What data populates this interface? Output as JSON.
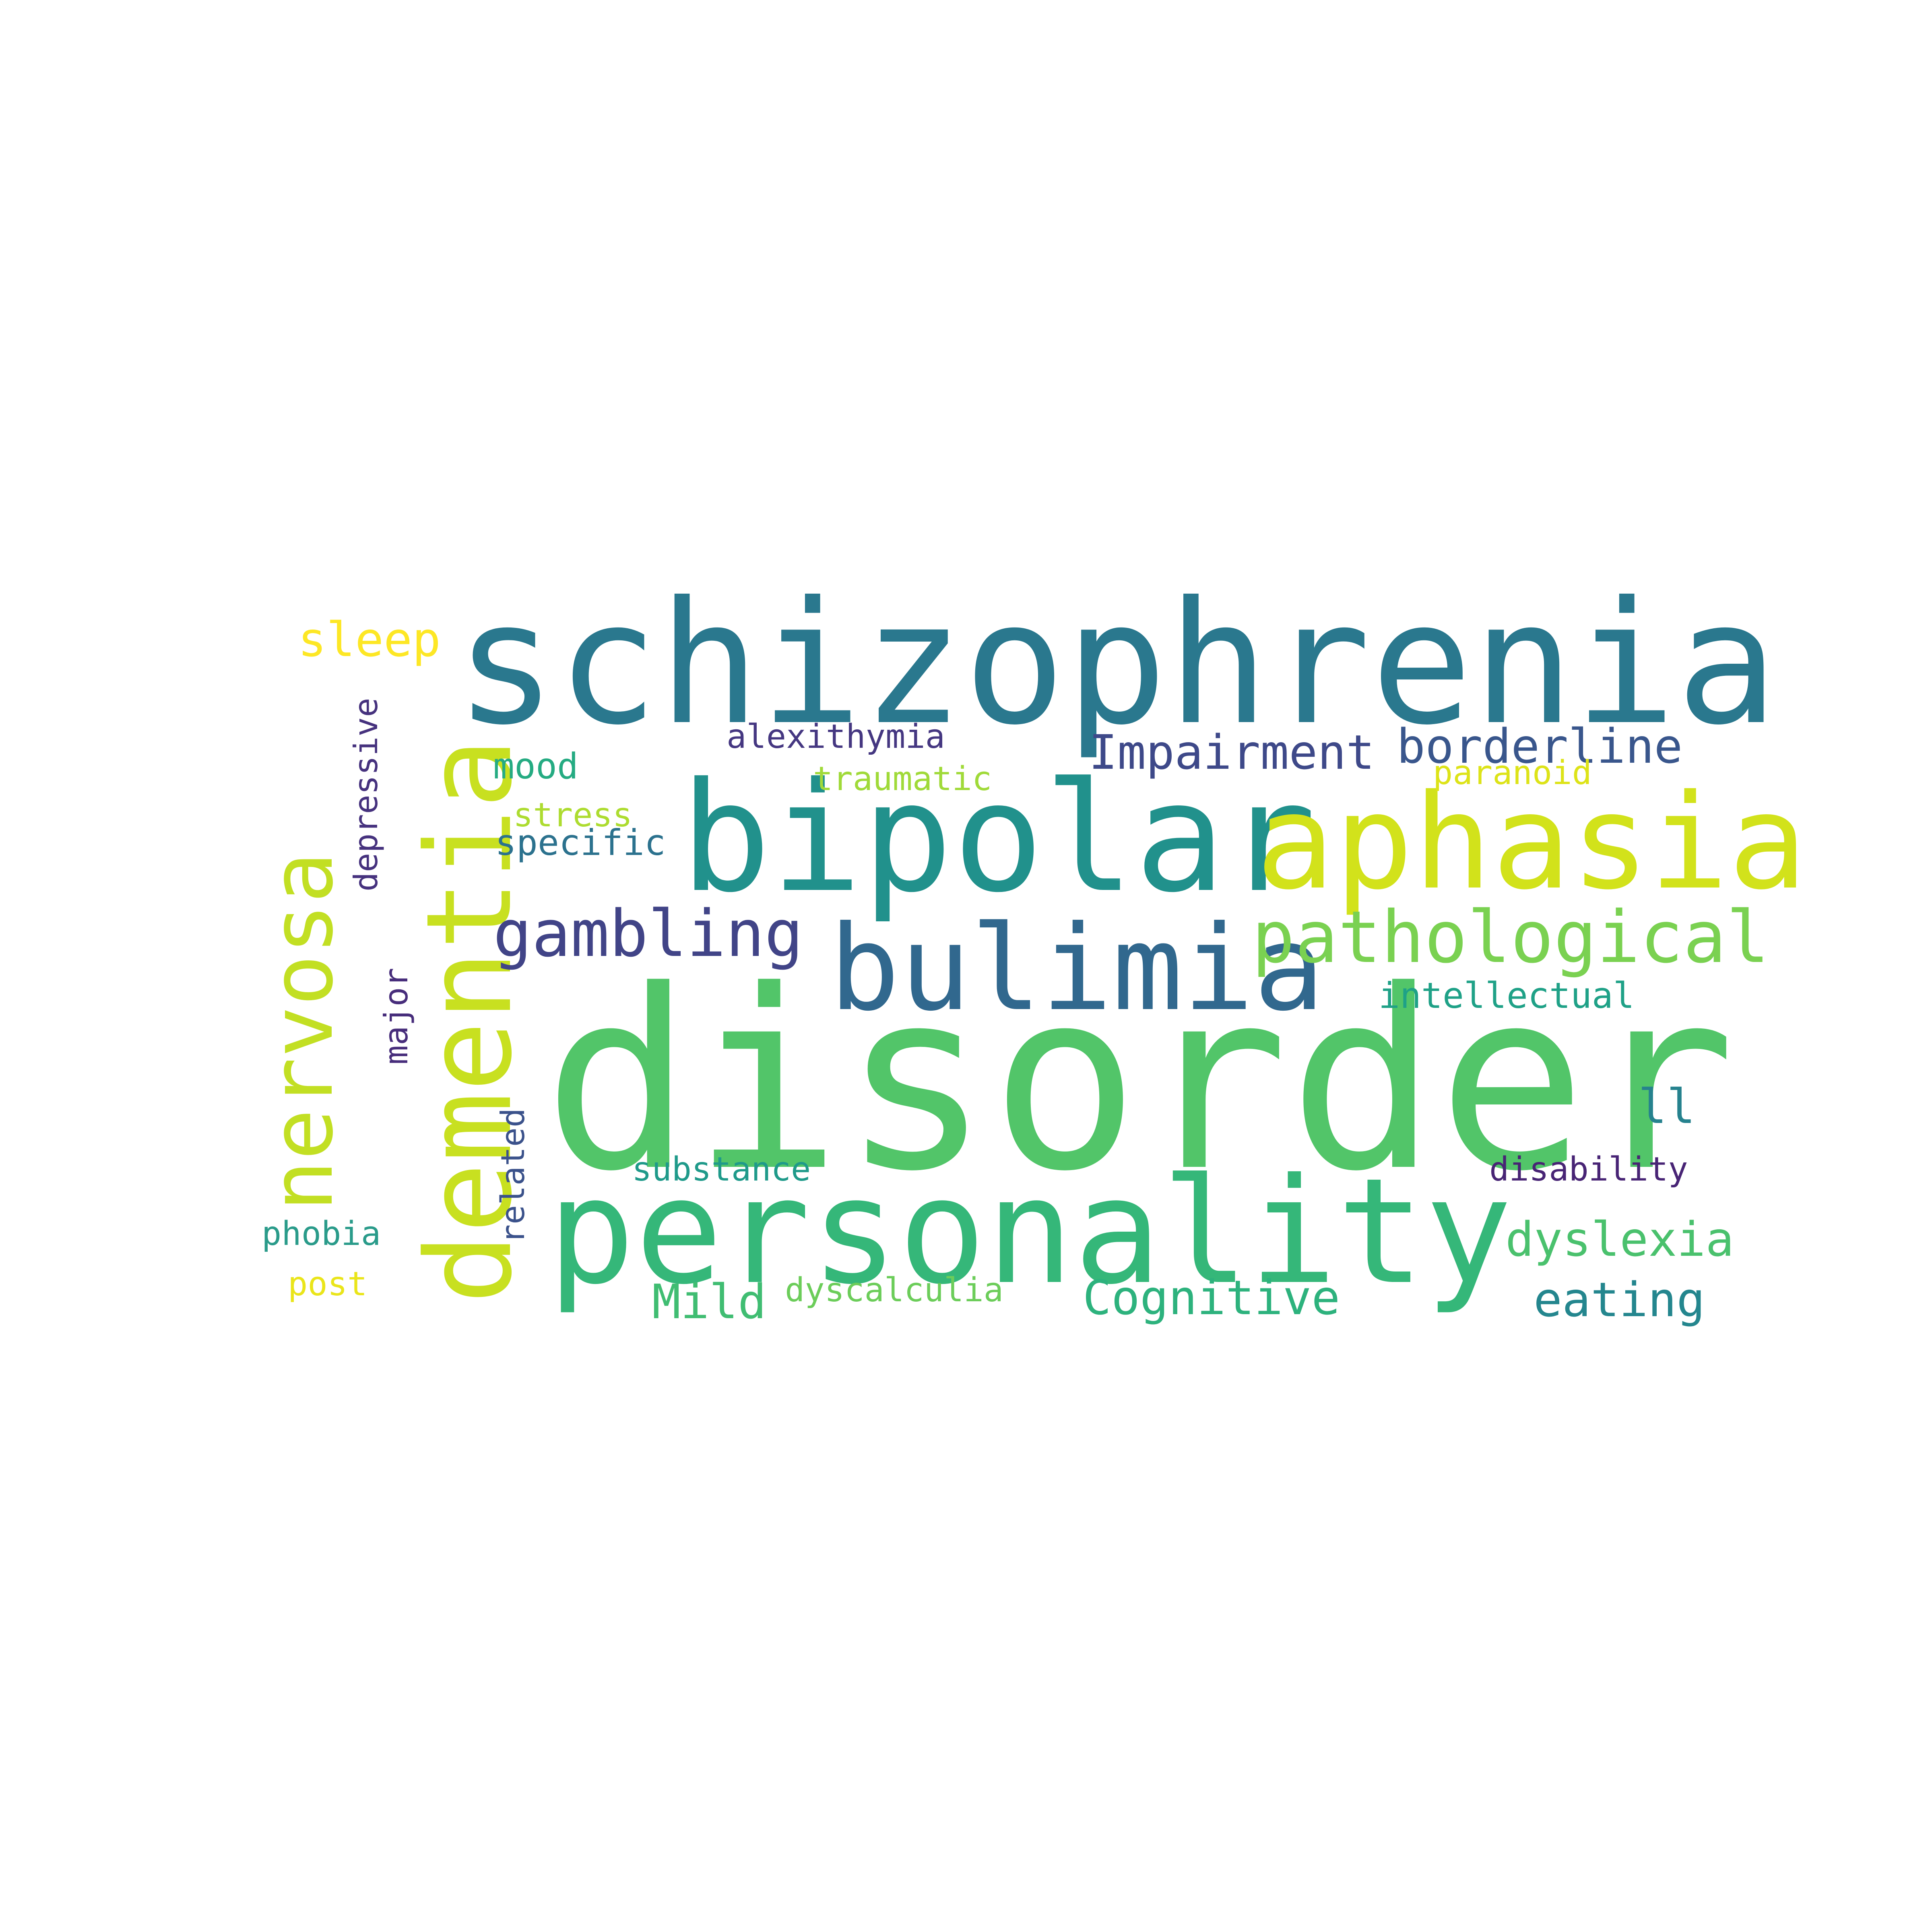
{
  "word_cloud": {
    "words": [
      {
        "key": "disorder",
        "text": "disorder",
        "color": "#52c569"
      },
      {
        "key": "schizophrenia",
        "text": "schizophrenia",
        "color": "#2a788e"
      },
      {
        "key": "bipolar",
        "text": "bipolar",
        "color": "#21918c"
      },
      {
        "key": "aphasia",
        "text": "aphasia",
        "color": "#d2e21b"
      },
      {
        "key": "personality",
        "text": "personality",
        "color": "#35b779"
      },
      {
        "key": "dementia",
        "text": "dementia",
        "color": "#c8e020"
      },
      {
        "key": "nervosa",
        "text": "nervosa",
        "color": "#c2df23"
      },
      {
        "key": "bulimia",
        "text": "bulimia",
        "color": "#31688e"
      },
      {
        "key": "pathological",
        "text": "pathological",
        "color": "#7ad151"
      },
      {
        "key": "gambling",
        "text": "gambling",
        "color": "#414487"
      },
      {
        "key": "impairment",
        "text": "Impairment",
        "color": "#3e4989"
      },
      {
        "key": "borderline",
        "text": "borderline",
        "color": "#39568c"
      },
      {
        "key": "alexithymia",
        "text": "alexithymia",
        "color": "#453781"
      },
      {
        "key": "traumatic",
        "text": "traumatic",
        "color": "#a0da39"
      },
      {
        "key": "paranoid",
        "text": "paranoid",
        "color": "#dde318"
      },
      {
        "key": "mood",
        "text": "mood",
        "color": "#25ab82"
      },
      {
        "key": "stress",
        "text": "stress",
        "color": "#addc30"
      },
      {
        "key": "specific",
        "text": "specific",
        "color": "#2c728e"
      },
      {
        "key": "sleep",
        "text": "sleep",
        "color": "#fde725"
      },
      {
        "key": "depressive",
        "text": "depressive",
        "color": "#46327e"
      },
      {
        "key": "major",
        "text": "major",
        "color": "#472d7b"
      },
      {
        "key": "related",
        "text": "related",
        "color": "#3b528b"
      },
      {
        "key": "intellectual",
        "text": "intellectual",
        "color": "#1fa187"
      },
      {
        "key": "ll",
        "text": "ll",
        "color": "#26828e"
      },
      {
        "key": "disability",
        "text": "disability",
        "color": "#482475"
      },
      {
        "key": "dyslexia",
        "text": "dyslexia",
        "color": "#4ac16d"
      },
      {
        "key": "eating",
        "text": "eating",
        "color": "#24868e"
      },
      {
        "key": "cognitive",
        "text": "Cognitive",
        "color": "#2db27d"
      },
      {
        "key": "mild",
        "text": "Mild",
        "color": "#40bd72"
      },
      {
        "key": "dyscalculia",
        "text": "dyscalculia",
        "color": "#6ccd5a"
      },
      {
        "key": "substance",
        "text": "substance",
        "color": "#1f9a8a"
      },
      {
        "key": "phobia",
        "text": "phobia",
        "color": "#2a9b8a"
      },
      {
        "key": "post",
        "text": "post",
        "color": "#eae51a"
      }
    ]
  }
}
